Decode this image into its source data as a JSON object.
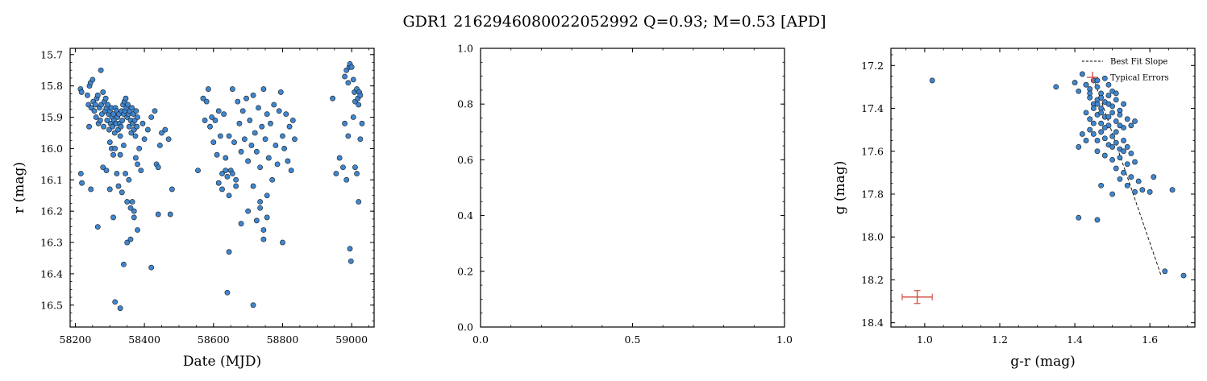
{
  "figure": {
    "title": "GDR1 2162946080022052992  Q=0.93; M=0.53 [APD]"
  },
  "colors": {
    "point_fill": "#3f86cf",
    "point_edge": "#1a1a1a",
    "error_bar": "#d2504a",
    "fit_line": "#000000"
  },
  "chart_data": [
    {
      "type": "scatter",
      "panel": "light-curve",
      "xlabel": "Date (MJD)",
      "ylabel": "r (mag)",
      "xlim": [
        58185,
        59065
      ],
      "ylim": [
        16.57,
        15.68
      ],
      "y_inverted": true,
      "xticks": [
        58200,
        58400,
        58600,
        58800,
        59000
      ],
      "yticks": [
        15.7,
        15.8,
        15.9,
        16.0,
        16.1,
        16.2,
        16.3,
        16.4,
        16.5
      ],
      "points": [
        [
          58215,
          15.81
        ],
        [
          58218,
          15.82
        ],
        [
          58216,
          16.08
        ],
        [
          58219,
          16.11
        ],
        [
          58235,
          15.83
        ],
        [
          58238,
          15.86
        ],
        [
          58241,
          15.8
        ],
        [
          58244,
          15.79
        ],
        [
          58246,
          15.87
        ],
        [
          58250,
          15.78
        ],
        [
          58252,
          15.85
        ],
        [
          58255,
          15.88
        ],
        [
          58258,
          15.86
        ],
        [
          58260,
          15.9
        ],
        [
          58262,
          15.84
        ],
        [
          58265,
          15.83
        ],
        [
          58267,
          15.92
        ],
        [
          58270,
          15.87
        ],
        [
          58272,
          15.91
        ],
        [
          58274,
          15.75
        ],
        [
          58275,
          15.86
        ],
        [
          58277,
          15.89
        ],
        [
          58280,
          15.82
        ],
        [
          58282,
          15.93
        ],
        [
          58284,
          15.85
        ],
        [
          58286,
          15.88
        ],
        [
          58288,
          15.84
        ],
        [
          58290,
          15.87
        ],
        [
          58292,
          15.91
        ],
        [
          58294,
          15.86
        ],
        [
          58296,
          15.89
        ],
        [
          58298,
          15.94
        ],
        [
          58300,
          15.88
        ],
        [
          58302,
          15.92
        ],
        [
          58304,
          15.87
        ],
        [
          58306,
          15.9
        ],
        [
          58308,
          15.93
        ],
        [
          58310,
          15.89
        ],
        [
          58312,
          15.91
        ],
        [
          58314,
          15.95
        ],
        [
          58316,
          15.87
        ],
        [
          58318,
          15.92
        ],
        [
          58320,
          15.88
        ],
        [
          58322,
          15.9
        ],
        [
          58324,
          15.94
        ],
        [
          58326,
          15.89
        ],
        [
          58328,
          15.92
        ],
        [
          58330,
          15.96
        ],
        [
          58332,
          15.93
        ],
        [
          58334,
          15.88
        ],
        [
          58336,
          15.91
        ],
        [
          58338,
          15.86
        ],
        [
          58340,
          15.89
        ],
        [
          58342,
          15.85
        ],
        [
          58344,
          15.88
        ],
        [
          58346,
          15.84
        ],
        [
          58348,
          15.87
        ],
        [
          58350,
          15.9
        ],
        [
          58352,
          15.86
        ],
        [
          58354,
          15.89
        ],
        [
          58356,
          15.93
        ],
        [
          58358,
          15.88
        ],
        [
          58360,
          15.91
        ],
        [
          58362,
          15.95
        ],
        [
          58364,
          15.87
        ],
        [
          58366,
          15.92
        ],
        [
          58368,
          15.89
        ],
        [
          58370,
          15.94
        ],
        [
          58372,
          15.91
        ],
        [
          58374,
          15.96
        ],
        [
          58376,
          15.88
        ],
        [
          58378,
          15.93
        ],
        [
          58380,
          15.9
        ],
        [
          58240,
          15.93
        ],
        [
          58245,
          16.13
        ],
        [
          58265,
          16.25
        ],
        [
          58280,
          16.06
        ],
        [
          58290,
          16.07
        ],
        [
          58300,
          15.98
        ],
        [
          58305,
          16.0
        ],
        [
          58310,
          16.02
        ],
        [
          58315,
          16.0
        ],
        [
          58320,
          16.08
        ],
        [
          58325,
          16.12
        ],
        [
          58330,
          16.02
        ],
        [
          58335,
          16.14
        ],
        [
          58340,
          15.99
        ],
        [
          58345,
          16.08
        ],
        [
          58350,
          16.17
        ],
        [
          58355,
          16.1
        ],
        [
          58360,
          16.19
        ],
        [
          58365,
          16.17
        ],
        [
          58370,
          16.2
        ],
        [
          58375,
          16.03
        ],
        [
          58380,
          16.05
        ],
        [
          58385,
          16.0
        ],
        [
          58390,
          16.07
        ],
        [
          58395,
          15.92
        ],
        [
          58400,
          15.97
        ],
        [
          58410,
          15.94
        ],
        [
          58420,
          15.9
        ],
        [
          58430,
          15.88
        ],
        [
          58435,
          16.05
        ],
        [
          58440,
          16.06
        ],
        [
          58445,
          15.99
        ],
        [
          58450,
          15.95
        ],
        [
          58460,
          15.94
        ],
        [
          58470,
          15.97
        ],
        [
          58480,
          16.13
        ],
        [
          58300,
          16.13
        ],
        [
          58310,
          16.22
        ],
        [
          58315,
          16.49
        ],
        [
          58330,
          16.51
        ],
        [
          58340,
          16.37
        ],
        [
          58350,
          16.3
        ],
        [
          58360,
          16.29
        ],
        [
          58370,
          16.22
        ],
        [
          58380,
          16.26
        ],
        [
          58420,
          16.38
        ],
        [
          58440,
          16.21
        ],
        [
          58475,
          16.21
        ],
        [
          58555,
          16.07
        ],
        [
          58570,
          15.84
        ],
        [
          58575,
          15.91
        ],
        [
          58580,
          15.85
        ],
        [
          58585,
          15.81
        ],
        [
          58590,
          15.93
        ],
        [
          58595,
          15.9
        ],
        [
          58600,
          15.98
        ],
        [
          58605,
          15.91
        ],
        [
          58610,
          16.02
        ],
        [
          58615,
          15.88
        ],
        [
          58620,
          15.96
        ],
        [
          58625,
          16.08
        ],
        [
          58630,
          15.89
        ],
        [
          58635,
          16.03
        ],
        [
          58640,
          16.09
        ],
        [
          58645,
          15.96
        ],
        [
          58650,
          16.07
        ],
        [
          58655,
          15.81
        ],
        [
          58660,
          15.98
        ],
        [
          58665,
          16.1
        ],
        [
          58670,
          15.85
        ],
        [
          58675,
          15.92
        ],
        [
          58680,
          16.01
        ],
        [
          58685,
          15.88
        ],
        [
          58690,
          15.97
        ],
        [
          58695,
          15.84
        ],
        [
          58700,
          16.04
        ],
        [
          58705,
          15.91
        ],
        [
          58710,
          15.99
        ],
        [
          58715,
          15.83
        ],
        [
          58720,
          15.95
        ],
        [
          58725,
          16.01
        ],
        [
          58730,
          15.87
        ],
        [
          58735,
          16.06
        ],
        [
          58740,
          15.93
        ],
        [
          58745,
          15.81
        ],
        [
          58750,
          15.97
        ],
        [
          58755,
          15.89
        ],
        [
          58760,
          16.03
        ],
        [
          58765,
          15.92
        ],
        [
          58770,
          16.1
        ],
        [
          58775,
          15.86
        ],
        [
          58780,
          15.99
        ],
        [
          58785,
          16.05
        ],
        [
          58790,
          15.88
        ],
        [
          58795,
          15.82
        ],
        [
          58800,
          15.96
        ],
        [
          58805,
          16.0
        ],
        [
          58810,
          15.89
        ],
        [
          58815,
          16.04
        ],
        [
          58820,
          15.93
        ],
        [
          58825,
          16.07
        ],
        [
          58830,
          15.91
        ],
        [
          58835,
          15.97
        ],
        [
          58615,
          16.11
        ],
        [
          58625,
          16.13
        ],
        [
          58635,
          16.07
        ],
        [
          58645,
          16.15
        ],
        [
          58655,
          16.08
        ],
        [
          58665,
          16.12
        ],
        [
          58680,
          16.24
        ],
        [
          58700,
          16.2
        ],
        [
          58715,
          16.12
        ],
        [
          58725,
          16.23
        ],
        [
          58735,
          16.17
        ],
        [
          58745,
          16.26
        ],
        [
          58755,
          16.22
        ],
        [
          58745,
          16.29
        ],
        [
          58800,
          16.3
        ],
        [
          58645,
          16.33
        ],
        [
          58640,
          16.46
        ],
        [
          58715,
          16.5
        ],
        [
          58735,
          16.19
        ],
        [
          58755,
          16.15
        ],
        [
          58945,
          15.84
        ],
        [
          58955,
          16.08
        ],
        [
          58965,
          16.03
        ],
        [
          58975,
          16.06
        ],
        [
          58980,
          15.77
        ],
        [
          58985,
          15.75
        ],
        [
          58990,
          15.79
        ],
        [
          58993,
          15.74
        ],
        [
          58995,
          15.73
        ],
        [
          59000,
          15.74
        ],
        [
          59005,
          15.78
        ],
        [
          59008,
          15.82
        ],
        [
          59010,
          15.85
        ],
        [
          59015,
          15.81
        ],
        [
          59018,
          15.84
        ],
        [
          59020,
          15.86
        ],
        [
          59022,
          15.82
        ],
        [
          59025,
          15.83
        ],
        [
          58980,
          15.92
        ],
        [
          58990,
          15.96
        ],
        [
          59005,
          15.9
        ],
        [
          59015,
          16.08
        ],
        [
          59020,
          16.17
        ],
        [
          59025,
          15.97
        ],
        [
          59030,
          15.92
        ],
        [
          58995,
          16.32
        ],
        [
          58998,
          16.36
        ],
        [
          59010,
          16.06
        ],
        [
          58985,
          16.1
        ]
      ]
    },
    {
      "type": "scatter",
      "panel": "empty",
      "xlabel": "",
      "ylabel": "",
      "xlim": [
        0.0,
        1.0
      ],
      "ylim": [
        0.0,
        1.0
      ],
      "xticks": [
        0.0,
        0.5,
        1.0
      ],
      "yticks": [
        0.0,
        0.2,
        0.4,
        0.6,
        0.8,
        1.0
      ],
      "points": []
    },
    {
      "type": "scatter",
      "panel": "color-magnitude",
      "xlabel": "g-r (mag)",
      "ylabel": "g (mag)",
      "xlim": [
        0.91,
        1.72
      ],
      "ylim": [
        18.42,
        17.12
      ],
      "y_inverted": true,
      "xticks": [
        1.0,
        1.2,
        1.4,
        1.6
      ],
      "yticks": [
        17.2,
        17.4,
        17.6,
        17.8,
        18.0,
        18.2,
        18.4
      ],
      "legend": {
        "position": "top-right",
        "entries": [
          {
            "label": "Best Fit Slope",
            "style": "dashed-line"
          },
          {
            "label": "Typical Errors",
            "style": "errorbar"
          }
        ]
      },
      "fit_line": [
        [
          1.45,
          17.26
        ],
        [
          1.63,
          18.18
        ]
      ],
      "typical_error": {
        "x": 0.98,
        "y": 18.28,
        "xerr": 0.04,
        "yerr": 0.03
      },
      "points": [
        [
          1.02,
          17.27
        ],
        [
          1.35,
          17.3
        ],
        [
          1.4,
          17.28
        ],
        [
          1.41,
          17.32
        ],
        [
          1.42,
          17.24
        ],
        [
          1.43,
          17.29
        ],
        [
          1.44,
          17.31
        ],
        [
          1.45,
          17.27
        ],
        [
          1.46,
          17.3
        ],
        [
          1.47,
          17.33
        ],
        [
          1.48,
          17.26
        ],
        [
          1.49,
          17.29
        ],
        [
          1.5,
          17.32
        ],
        [
          1.44,
          17.35
        ],
        [
          1.45,
          17.38
        ],
        [
          1.46,
          17.36
        ],
        [
          1.47,
          17.4
        ],
        [
          1.48,
          17.37
        ],
        [
          1.49,
          17.34
        ],
        [
          1.5,
          17.39
        ],
        [
          1.51,
          17.36
        ],
        [
          1.52,
          17.41
        ],
        [
          1.53,
          17.38
        ],
        [
          1.43,
          17.42
        ],
        [
          1.44,
          17.45
        ],
        [
          1.45,
          17.4
        ],
        [
          1.46,
          17.43
        ],
        [
          1.47,
          17.47
        ],
        [
          1.48,
          17.44
        ],
        [
          1.49,
          17.48
        ],
        [
          1.5,
          17.42
        ],
        [
          1.51,
          17.46
        ],
        [
          1.52,
          17.43
        ],
        [
          1.53,
          17.49
        ],
        [
          1.54,
          17.45
        ],
        [
          1.55,
          17.48
        ],
        [
          1.56,
          17.46
        ],
        [
          1.44,
          17.5
        ],
        [
          1.45,
          17.52
        ],
        [
          1.46,
          17.55
        ],
        [
          1.47,
          17.51
        ],
        [
          1.48,
          17.54
        ],
        [
          1.49,
          17.57
        ],
        [
          1.5,
          17.53
        ],
        [
          1.51,
          17.56
        ],
        [
          1.52,
          17.59
        ],
        [
          1.53,
          17.55
        ],
        [
          1.54,
          17.58
        ],
        [
          1.55,
          17.61
        ],
        [
          1.42,
          17.52
        ],
        [
          1.43,
          17.55
        ],
        [
          1.41,
          17.58
        ],
        [
          1.46,
          17.6
        ],
        [
          1.48,
          17.62
        ],
        [
          1.5,
          17.64
        ],
        [
          1.52,
          17.63
        ],
        [
          1.54,
          17.66
        ],
        [
          1.56,
          17.65
        ],
        [
          1.51,
          17.68
        ],
        [
          1.53,
          17.7
        ],
        [
          1.55,
          17.72
        ],
        [
          1.57,
          17.74
        ],
        [
          1.52,
          17.73
        ],
        [
          1.54,
          17.76
        ],
        [
          1.58,
          17.78
        ],
        [
          1.6,
          17.79
        ],
        [
          1.61,
          17.72
        ],
        [
          1.56,
          17.79
        ],
        [
          1.5,
          17.8
        ],
        [
          1.47,
          17.76
        ],
        [
          1.66,
          17.78
        ],
        [
          1.41,
          17.91
        ],
        [
          1.46,
          17.92
        ],
        [
          1.64,
          18.16
        ],
        [
          1.69,
          18.18
        ],
        [
          1.43,
          17.29
        ],
        [
          1.47,
          17.35
        ],
        [
          1.49,
          17.44
        ],
        [
          1.51,
          17.51
        ],
        [
          1.53,
          17.6
        ],
        [
          1.45,
          17.47
        ],
        [
          1.47,
          17.42
        ],
        [
          1.49,
          17.38
        ],
        [
          1.51,
          17.33
        ],
        [
          1.52,
          17.48
        ],
        [
          1.5,
          17.58
        ],
        [
          1.48,
          17.49
        ],
        [
          1.46,
          17.38
        ],
        [
          1.44,
          17.33
        ],
        [
          1.46,
          17.27
        ]
      ]
    }
  ]
}
